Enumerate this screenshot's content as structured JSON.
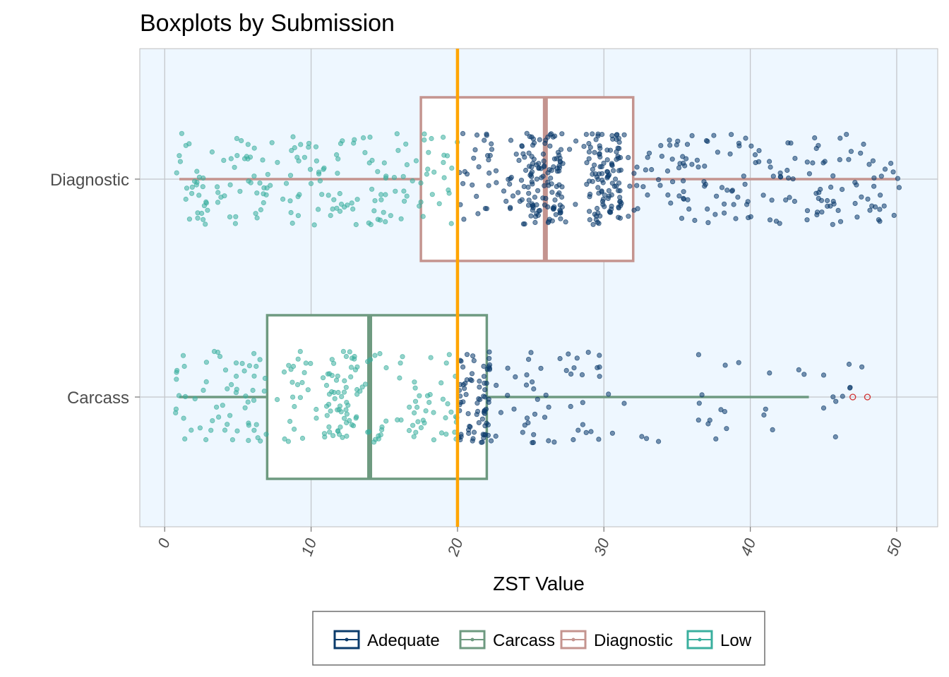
{
  "chart_data": {
    "type": "boxplot",
    "title": "Boxplots by Submission",
    "xlabel": "ZST Value",
    "ylabel": "",
    "xlim": [
      -1.7,
      52.8
    ],
    "x_ticks": [
      0,
      10,
      20,
      30,
      40,
      50
    ],
    "categories": [
      "Diagnostic",
      "Carcass"
    ],
    "reference_line": {
      "x": 20,
      "color": "#FFA500"
    },
    "threshold_for_color": 20,
    "boxes": [
      {
        "name": "Diagnostic",
        "min": 1,
        "q1": 17.5,
        "median": 26,
        "q3": 32,
        "max": 50,
        "outliers": [],
        "color": "#C4948F"
      },
      {
        "name": "Carcass",
        "min": 1,
        "q1": 7,
        "median": 14,
        "q3": 22,
        "max": 44,
        "outliers": [
          47,
          48
        ],
        "color": "#6E9A80"
      }
    ],
    "jitter_points": {
      "Diagnostic": {
        "count": 620,
        "min": 0.6,
        "max": 50.3,
        "peaks": [
          26,
          30
        ]
      },
      "Carcass": {
        "count": 360,
        "min": 0.6,
        "max": 48.2,
        "peaks": [
          12,
          21
        ]
      }
    },
    "point_colors": {
      "Adequate": "#0B3B6B",
      "Low": "#3AAF9E"
    },
    "legend": {
      "placement": "bottom",
      "entries": [
        {
          "label": "Adequate",
          "color": "#0B3B6B"
        },
        {
          "label": "Carcass",
          "color": "#6E9A80"
        },
        {
          "label": "Diagnostic",
          "color": "#C4948F"
        },
        {
          "label": "Low",
          "color": "#3AAF9E"
        }
      ]
    },
    "grid": true,
    "panel_background": "#EEF7FF"
  }
}
